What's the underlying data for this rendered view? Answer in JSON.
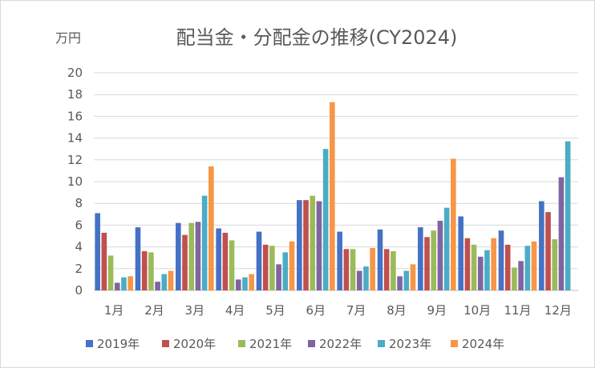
{
  "chart_data": {
    "type": "bar",
    "title": "配当金・分配金の推移(CY2024)",
    "ylabel": "万円",
    "xlabel": "",
    "ylim": [
      0,
      20
    ],
    "yticks": [
      0,
      2,
      4,
      6,
      8,
      10,
      12,
      14,
      16,
      18,
      20
    ],
    "grid": true,
    "legend": "bottom",
    "categories": [
      "1月",
      "2月",
      "3月",
      "4月",
      "5月",
      "6月",
      "7月",
      "8月",
      "9月",
      "10月",
      "11月",
      "12月"
    ],
    "series": [
      {
        "name": "2019年",
        "color": "#4472c4",
        "values": [
          7.1,
          5.8,
          6.2,
          5.7,
          5.4,
          8.3,
          5.4,
          5.6,
          5.8,
          6.8,
          5.5,
          8.2
        ]
      },
      {
        "name": "2020年",
        "color": "#c0504d",
        "values": [
          5.3,
          3.6,
          5.1,
          5.3,
          4.2,
          8.3,
          3.8,
          3.8,
          4.9,
          4.8,
          4.2,
          7.2
        ]
      },
      {
        "name": "2021年",
        "color": "#9bbb59",
        "values": [
          3.2,
          3.5,
          6.2,
          4.6,
          4.1,
          8.7,
          3.8,
          3.6,
          5.5,
          4.2,
          2.1,
          4.7
        ]
      },
      {
        "name": "2022年",
        "color": "#8064a2",
        "values": [
          0.7,
          0.8,
          6.3,
          1.0,
          2.4,
          8.2,
          1.8,
          1.3,
          6.4,
          3.1,
          2.7,
          10.4
        ]
      },
      {
        "name": "2023年",
        "color": "#4bacc6",
        "values": [
          1.2,
          1.5,
          8.7,
          1.2,
          3.5,
          13.0,
          2.2,
          1.8,
          7.6,
          3.7,
          4.1,
          13.7
        ]
      },
      {
        "name": "2024年",
        "color": "#f79646",
        "values": [
          1.3,
          1.8,
          11.4,
          1.5,
          4.5,
          17.3,
          3.9,
          2.4,
          12.1,
          4.8,
          4.5,
          null
        ]
      }
    ]
  }
}
